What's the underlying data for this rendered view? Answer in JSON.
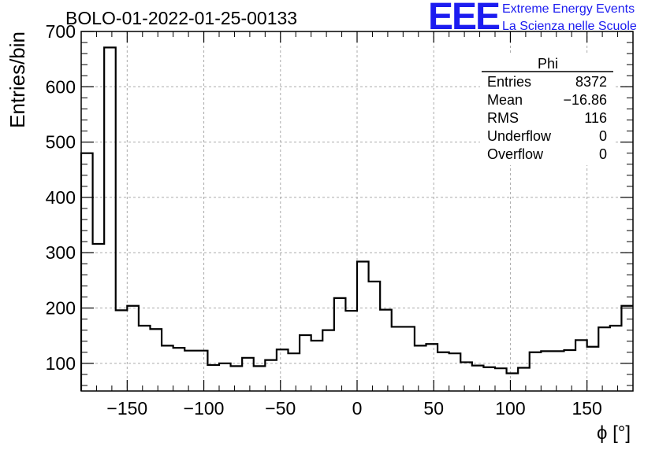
{
  "header": {
    "run_title": "BOLO-01-2022-01-25-00133",
    "logo_mark": "EEE",
    "logo_line1": "Extreme Energy Events",
    "logo_line2": "La Scienza nelle Scuole",
    "logo_color": "#1c1cf0"
  },
  "stats": {
    "name": "Phi",
    "rows": [
      {
        "label": "Entries",
        "value": "8372"
      },
      {
        "label": "Mean",
        "value": "−16.86"
      },
      {
        "label": "RMS",
        "value": "116"
      },
      {
        "label": "Underflow",
        "value": "0"
      },
      {
        "label": "Overflow",
        "value": "0"
      }
    ]
  },
  "chart_data": {
    "type": "histogram",
    "title": "BOLO-01-2022-01-25-00133",
    "xlabel": "ϕ [°]",
    "ylabel": "Entries/bin",
    "xlim": [
      -180,
      180
    ],
    "ylim": [
      50,
      700
    ],
    "bin_width": 7.5,
    "xticks": [
      -150,
      -100,
      -50,
      0,
      50,
      100,
      150
    ],
    "xtick_labels": [
      "−150",
      "−100",
      "−50",
      "0",
      "50",
      "100",
      "150"
    ],
    "yticks": [
      100,
      200,
      300,
      400,
      500,
      600,
      700
    ],
    "grid": true,
    "line_color": "#000000",
    "bin_edges": [
      -180,
      -172.5,
      -165,
      -157.5,
      -150,
      -142.5,
      -135,
      -127.5,
      -120,
      -112.5,
      -105,
      -97.5,
      -90,
      -82.5,
      -75,
      -67.5,
      -60,
      -52.5,
      -45,
      -37.5,
      -30,
      -22.5,
      -15,
      -7.5,
      0,
      7.5,
      15,
      22.5,
      30,
      37.5,
      45,
      52.5,
      60,
      67.5,
      75,
      82.5,
      90,
      97.5,
      105,
      112.5,
      120,
      127.5,
      135,
      142.5,
      150,
      157.5,
      165,
      172.5,
      180
    ],
    "values": [
      480,
      316,
      671,
      196,
      204,
      168,
      162,
      132,
      128,
      123,
      123,
      97,
      100,
      95,
      110,
      95,
      106,
      125,
      118,
      151,
      141,
      160,
      218,
      195,
      284,
      248,
      197,
      166,
      166,
      132,
      135,
      120,
      118,
      102,
      96,
      93,
      91,
      82,
      92,
      120,
      122,
      122,
      124,
      142,
      130,
      165,
      168,
      204
    ]
  }
}
